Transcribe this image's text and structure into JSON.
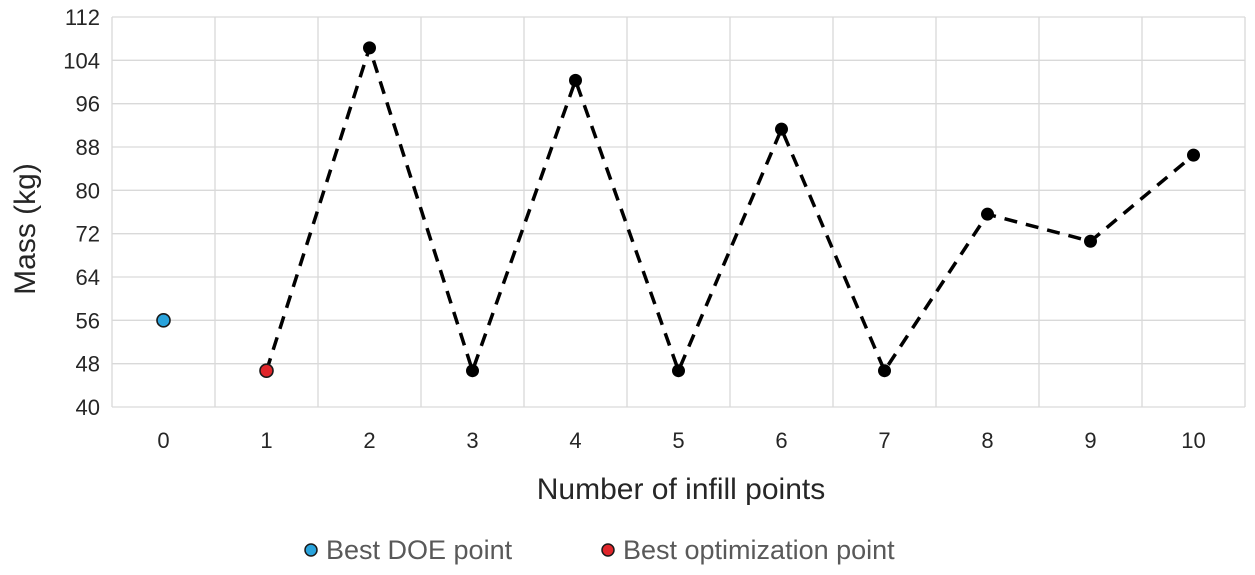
{
  "chart_data": {
    "type": "scatter",
    "title": "",
    "xlabel": "Number of infill points",
    "ylabel": "Mass (kg)",
    "xlim": [
      -0.5,
      10.5
    ],
    "ylim": [
      40,
      112
    ],
    "x_ticks": [
      0,
      1,
      2,
      3,
      4,
      5,
      6,
      7,
      8,
      9,
      10
    ],
    "y_ticks": [
      40,
      48,
      56,
      64,
      72,
      80,
      88,
      96,
      104,
      112
    ],
    "grid": true,
    "legend_position": "bottom",
    "series": [
      {
        "name": "Best DOE point",
        "color": "#29a3dc",
        "marker": "circle",
        "x": [
          0
        ],
        "y": [
          56
        ]
      },
      {
        "name": "Best optimization point",
        "color": "#e0262b",
        "marker": "circle",
        "x": [
          1
        ],
        "y": [
          46.7
        ]
      },
      {
        "color": "#000000",
        "marker": "circle",
        "line_style": "dashed",
        "connects_from": {
          "x": 1,
          "y": 46.7
        },
        "x": [
          2,
          3,
          4,
          5,
          6,
          7,
          8,
          9,
          10
        ],
        "y": [
          106.3,
          46.7,
          100.3,
          46.7,
          91.3,
          46.7,
          75.6,
          70.6,
          86.5
        ]
      }
    ]
  }
}
